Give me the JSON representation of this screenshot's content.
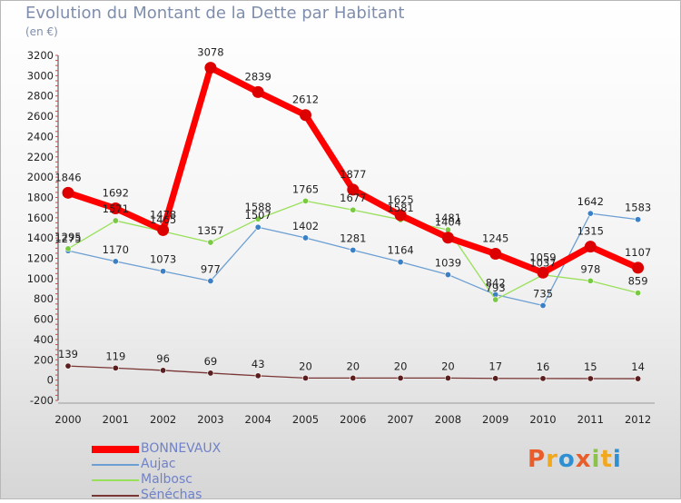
{
  "title": "Evolution du Montant de la Dette par Habitant",
  "unit": "(en €)",
  "logo": {
    "letters": [
      "P",
      "r",
      "o",
      "x",
      "i",
      "t",
      "i"
    ],
    "colors": [
      "#e85d2a",
      "#f2a81d",
      "#2f8fd3",
      "#e85d2a",
      "#8bc34a",
      "#f2a81d",
      "#2f8fd3"
    ]
  },
  "chart_data": {
    "type": "line",
    "title": "Evolution du Montant de la Dette par Habitant",
    "ylabel": "(en €)",
    "x": [
      "2000",
      "2001",
      "2002",
      "2003",
      "2004",
      "2005",
      "2006",
      "2007",
      "2008",
      "2009",
      "2010",
      "2011",
      "2012"
    ],
    "ylim": [
      -200,
      3200
    ],
    "yticks": [
      -200,
      0,
      200,
      400,
      600,
      800,
      1000,
      1200,
      1400,
      1600,
      1800,
      2000,
      2200,
      2400,
      2600,
      2800,
      3000,
      3200
    ],
    "grid": false,
    "legend": "bottom-left",
    "series": [
      {
        "name": "BONNEVAUX",
        "color": "#ff0000",
        "dot": "#dd0000",
        "width": 7,
        "values": [
          1846,
          1692,
          1478,
          3078,
          2839,
          2612,
          1877,
          1625,
          1404,
          1245,
          1059,
          1315,
          1107
        ]
      },
      {
        "name": "Aujac",
        "color": "#6c9fd3",
        "dot": "#3b7fc4",
        "width": 1.3,
        "values": [
          1275,
          1170,
          1073,
          977,
          1507,
          1402,
          1281,
          1164,
          1039,
          842,
          735,
          1642,
          1583
        ]
      },
      {
        "name": "Malbosc",
        "color": "#99e05a",
        "dot": "#7ac943",
        "width": 1.3,
        "values": [
          1295,
          1571,
          1465,
          1357,
          1588,
          1765,
          1677,
          1581,
          1481,
          793,
          1037,
          978,
          859
        ]
      },
      {
        "name": "Sénéchas",
        "color": "#7a3535",
        "dot": "#5a1e1e",
        "width": 1.3,
        "values": [
          139,
          119,
          96,
          69,
          43,
          20,
          20,
          20,
          20,
          17,
          16,
          15,
          14
        ]
      }
    ]
  }
}
